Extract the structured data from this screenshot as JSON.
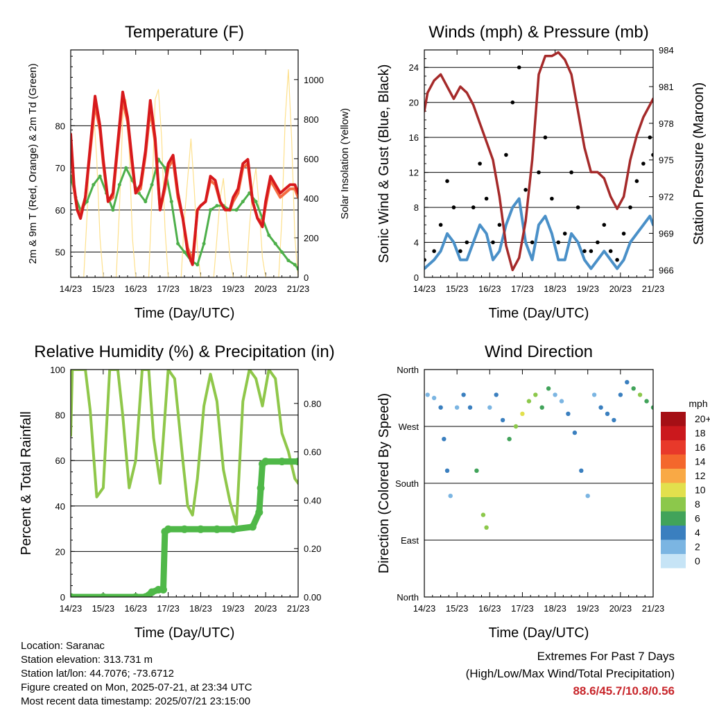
{
  "chart_data": [
    {
      "type": "line",
      "title": "Temperature (F)",
      "xlabel": "Time (Day/UTC)",
      "ylabel": "2m & 9m T (Red, Orange) & 2m Td (Green)",
      "ylabel_right": "Solar Insolation (Yellow)",
      "x_ticks": [
        "14/23",
        "15/23",
        "16/23",
        "17/23",
        "18/23",
        "19/23",
        "20/23",
        "21/23"
      ],
      "ylim": [
        44,
        98
      ],
      "y_ticks": [
        50,
        60,
        70,
        80
      ],
      "ylim_right": [
        0,
        1150
      ],
      "y_ticks_right": [
        0,
        200,
        400,
        600,
        800,
        1000
      ],
      "grid": "horizontal",
      "series": [
        {
          "name": "2m T",
          "color": "#d7191c",
          "x": [
            0,
            0.1,
            0.2,
            0.3,
            0.45,
            0.6,
            0.75,
            0.9,
            1.0,
            1.15,
            1.3,
            1.45,
            1.6,
            1.75,
            1.9,
            2.0,
            2.15,
            2.3,
            2.45,
            2.6,
            2.75,
            2.9,
            3.0,
            3.15,
            3.3,
            3.45,
            3.6,
            3.75,
            3.9,
            4.0,
            4.15,
            4.3,
            4.45,
            4.6,
            4.75,
            4.9,
            5.0,
            5.15,
            5.3,
            5.45,
            5.6,
            5.75,
            5.9,
            6.0,
            6.15,
            6.3,
            6.45,
            6.6,
            6.75,
            6.9,
            7.0
          ],
          "values": [
            78,
            66,
            60,
            58,
            63,
            75,
            87,
            80,
            72,
            62,
            64,
            76,
            88,
            82,
            71,
            64,
            66,
            74,
            86,
            77,
            60,
            66,
            71,
            73,
            64,
            58,
            50,
            47,
            60,
            61,
            62,
            68,
            67,
            62,
            60,
            60,
            63,
            65,
            71,
            72,
            62,
            58,
            56,
            62,
            68,
            66,
            64,
            65,
            66,
            66,
            64
          ]
        },
        {
          "name": "9m T",
          "color": "#f46d43",
          "x": [
            0,
            0.1,
            0.2,
            0.3,
            0.45,
            0.6,
            0.75,
            0.9,
            1.0,
            1.15,
            1.3,
            1.45,
            1.6,
            1.75,
            1.9,
            2.0,
            2.15,
            2.3,
            2.45,
            2.6,
            2.75,
            2.9,
            3.0,
            3.15,
            3.3,
            3.45,
            3.6,
            3.75,
            3.9,
            4.0,
            4.15,
            4.3,
            4.45,
            4.6,
            4.75,
            4.9,
            5.0,
            5.15,
            5.3,
            5.45,
            5.6,
            5.75,
            5.9,
            6.0,
            6.15,
            6.3,
            6.45,
            6.6,
            6.75,
            6.9,
            7.0
          ],
          "values": [
            77,
            65,
            60,
            59,
            63,
            74,
            85,
            79,
            71,
            62,
            63,
            75,
            86,
            81,
            70,
            64,
            65,
            73,
            84,
            76,
            60,
            65,
            70,
            72,
            63,
            58,
            51,
            48,
            60,
            61,
            62,
            67,
            66,
            62,
            60,
            60,
            62,
            64,
            70,
            71,
            62,
            58,
            57,
            61,
            67,
            65,
            63,
            64,
            65,
            65,
            63
          ]
        },
        {
          "name": "2m Td",
          "color": "#4daf4a",
          "x": [
            0,
            0.15,
            0.3,
            0.5,
            0.7,
            0.9,
            1.1,
            1.3,
            1.5,
            1.7,
            1.9,
            2.1,
            2.3,
            2.5,
            2.7,
            2.9,
            3.1,
            3.3,
            3.5,
            3.7,
            3.9,
            4.1,
            4.3,
            4.5,
            4.7,
            4.9,
            5.1,
            5.3,
            5.5,
            5.7,
            5.9,
            6.1,
            6.3,
            6.5,
            6.7,
            6.9,
            7.0
          ],
          "values": [
            68,
            63,
            60,
            62,
            66,
            68,
            64,
            60,
            66,
            70,
            67,
            64,
            62,
            66,
            72,
            70,
            62,
            52,
            50,
            48,
            47,
            52,
            60,
            61,
            61,
            60,
            60,
            62,
            64,
            62,
            58,
            54,
            52,
            50,
            48,
            47,
            46
          ]
        },
        {
          "name": "Solar Insolation",
          "color": "#fee08b",
          "axis": "right",
          "x": [
            0,
            0.2,
            0.4,
            0.5,
            0.6,
            0.7,
            0.8,
            0.9,
            1.0,
            1.2,
            1.4,
            1.5,
            1.6,
            1.7,
            1.8,
            1.9,
            2.0,
            2.2,
            2.4,
            2.5,
            2.6,
            2.7,
            2.8,
            2.9,
            3.0,
            3.2,
            3.4,
            3.5,
            3.6,
            3.7,
            3.8,
            3.9,
            4.0,
            4.2,
            4.4,
            4.5,
            4.6,
            4.7,
            4.8,
            4.9,
            5.0,
            5.2,
            5.4,
            5.5,
            5.6,
            5.7,
            5.8,
            5.9,
            6.0,
            6.2,
            6.4,
            6.5,
            6.6,
            6.7,
            6.8,
            6.9,
            7.0
          ],
          "values": [
            0,
            0,
            0,
            300,
            700,
            850,
            600,
            200,
            0,
            0,
            0,
            350,
            800,
            900,
            650,
            200,
            0,
            0,
            0,
            400,
            900,
            950,
            700,
            250,
            0,
            0,
            0,
            300,
            500,
            700,
            450,
            150,
            0,
            0,
            0,
            200,
            400,
            500,
            300,
            100,
            0,
            0,
            0,
            250,
            450,
            550,
            350,
            100,
            0,
            0,
            0,
            300,
            800,
            1050,
            700,
            200,
            0
          ]
        }
      ]
    },
    {
      "type": "scatter",
      "title": "Winds (mph) & Pressure (mb)",
      "xlabel": "Time (Day/UTC)",
      "ylabel": "Sonic Wind & Gust (Blue, Black)",
      "ylabel_right": "Station Pressure (Maroon)",
      "x_ticks": [
        "14/23",
        "15/23",
        "16/23",
        "17/23",
        "18/23",
        "19/23",
        "20/23",
        "21/23"
      ],
      "ylim": [
        0,
        26
      ],
      "y_ticks": [
        0,
        4,
        8,
        12,
        16,
        20,
        24
      ],
      "ylim_right": [
        965.4,
        984
      ],
      "y_ticks_right": [
        966,
        969,
        972,
        975,
        978,
        981,
        984
      ],
      "grid": "horizontal",
      "series": [
        {
          "name": "Gust",
          "color": "#000000",
          "x": [
            0,
            0.3,
            0.5,
            0.7,
            0.9,
            1.1,
            1.3,
            1.5,
            1.7,
            1.9,
            2.1,
            2.3,
            2.5,
            2.7,
            2.9,
            3.1,
            3.3,
            3.5,
            3.7,
            3.9,
            4.1,
            4.3,
            4.5,
            4.7,
            4.9,
            5.1,
            5.3,
            5.5,
            5.7,
            5.9,
            6.1,
            6.3,
            6.5,
            6.7,
            6.9,
            7.0
          ],
          "values": [
            2,
            3,
            6,
            11,
            8,
            3,
            4,
            8,
            13,
            9,
            4,
            6,
            14,
            20,
            24,
            10,
            4,
            12,
            16,
            9,
            4,
            5,
            12,
            8,
            3,
            3,
            4,
            6,
            3,
            2,
            5,
            8,
            11,
            13,
            16,
            14
          ]
        },
        {
          "name": "Sonic Wind",
          "color": "#4a90c8",
          "x": [
            0,
            0.3,
            0.5,
            0.7,
            0.9,
            1.1,
            1.3,
            1.5,
            1.7,
            1.9,
            2.1,
            2.3,
            2.5,
            2.7,
            2.9,
            3.1,
            3.3,
            3.5,
            3.7,
            3.9,
            4.1,
            4.3,
            4.5,
            4.7,
            4.9,
            5.1,
            5.3,
            5.5,
            5.7,
            5.9,
            6.1,
            6.3,
            6.5,
            6.7,
            6.9,
            7.0
          ],
          "values": [
            1,
            2,
            3,
            5,
            4,
            2,
            2,
            4,
            6,
            5,
            2,
            3,
            6,
            8,
            9,
            4,
            2,
            6,
            7,
            5,
            2,
            2,
            5,
            4,
            2,
            1,
            2,
            3,
            2,
            1,
            2,
            4,
            5,
            6,
            7,
            6
          ]
        },
        {
          "name": "Station Pressure",
          "color": "#a52a2a",
          "axis": "right",
          "x": [
            0,
            0.1,
            0.3,
            0.5,
            0.7,
            0.9,
            1.1,
            1.3,
            1.5,
            1.7,
            1.9,
            2.1,
            2.3,
            2.5,
            2.7,
            2.9,
            3.1,
            3.3,
            3.5,
            3.7,
            3.9,
            4.1,
            4.3,
            4.5,
            4.7,
            4.9,
            5.1,
            5.3,
            5.5,
            5.7,
            5.9,
            6.1,
            6.3,
            6.5,
            6.7,
            6.9,
            7.0
          ],
          "values": [
            979,
            980.5,
            981.5,
            982,
            981,
            980,
            981,
            980.5,
            979.5,
            978,
            976.5,
            975,
            972,
            968,
            966,
            967,
            970,
            975,
            982,
            983.5,
            983.5,
            983.8,
            983.2,
            982,
            979,
            976,
            974,
            974,
            973.5,
            972,
            971,
            972,
            975,
            977,
            978.5,
            979.5,
            980
          ]
        }
      ]
    },
    {
      "type": "line",
      "title": "Relative Humidity (%) & Precipitation (in)",
      "xlabel": "Time (Day/UTC)",
      "ylabel": "Percent & Total Rainfall",
      "x_ticks": [
        "14/23",
        "15/23",
        "16/23",
        "17/23",
        "18/23",
        "19/23",
        "20/23",
        "21/23"
      ],
      "ylim": [
        0,
        100
      ],
      "y_ticks": [
        0,
        20,
        40,
        60,
        80,
        100
      ],
      "ylim_right": [
        0,
        0.94
      ],
      "y_ticks_right": [
        "0.00",
        "0.20",
        "0.40",
        "0.60",
        "0.80"
      ],
      "grid": "horizontal",
      "series": [
        {
          "name": "Relative Humidity",
          "color": "#8fc74a",
          "x": [
            0,
            0.05,
            0.2,
            0.45,
            0.6,
            0.8,
            1.0,
            1.2,
            1.45,
            1.6,
            1.8,
            2.0,
            2.2,
            2.4,
            2.55,
            2.75,
            3.0,
            3.2,
            3.45,
            3.6,
            3.75,
            3.9,
            4.1,
            4.3,
            4.5,
            4.7,
            4.9,
            5.1,
            5.3,
            5.5,
            5.7,
            5.9,
            6.1,
            6.3,
            6.5,
            6.7,
            6.9,
            7.0
          ],
          "values": [
            71,
            100,
            100,
            100,
            82,
            44,
            48,
            100,
            100,
            80,
            48,
            60,
            100,
            100,
            70,
            50,
            100,
            96,
            60,
            40,
            36,
            52,
            84,
            98,
            86,
            56,
            42,
            32,
            86,
            100,
            96,
            84,
            100,
            96,
            72,
            64,
            52,
            50
          ]
        },
        {
          "name": "Total Precipitation",
          "color": "#4fb848",
          "axis": "right",
          "x": [
            0,
            1.0,
            2.0,
            2.3,
            2.5,
            2.7,
            2.85,
            2.9,
            3.0,
            3.5,
            4.0,
            4.5,
            5.0,
            5.6,
            5.8,
            5.85,
            5.9,
            6.0,
            6.5,
            7.0
          ],
          "values": [
            0,
            0,
            0,
            0,
            0.02,
            0.03,
            0.03,
            0.27,
            0.28,
            0.28,
            0.28,
            0.28,
            0.28,
            0.29,
            0.35,
            0.45,
            0.55,
            0.56,
            0.56,
            0.56
          ]
        }
      ]
    },
    {
      "type": "scatter",
      "title": "Wind Direction",
      "xlabel": "Time (Day/UTC)",
      "ylabel": "Direction (Colored By Speed)",
      "x_ticks": [
        "14/23",
        "15/23",
        "16/23",
        "17/23",
        "18/23",
        "19/23",
        "20/23",
        "21/23"
      ],
      "ylim": [
        0,
        360
      ],
      "y_ticks": [
        "North",
        "East",
        "South",
        "West",
        "North"
      ],
      "grid": "horizontal",
      "legend": {
        "title": "mph",
        "placement": "right",
        "levels": [
          "20+",
          "18",
          "16",
          "14",
          "12",
          "10",
          "8",
          "6",
          "4",
          "2",
          "0"
        ],
        "colors": [
          "#a50f15",
          "#cb181d",
          "#e8392a",
          "#f4672c",
          "#f9a945",
          "#e2e04d",
          "#8cc84b",
          "#41a35a",
          "#3a7fbf",
          "#7bb5e2",
          "#c6e4f6"
        ]
      },
      "series": [
        {
          "name": "Direction",
          "x": [
            0.1,
            0.3,
            0.5,
            0.6,
            0.7,
            0.8,
            1.0,
            1.2,
            1.4,
            1.6,
            1.8,
            1.9,
            2.0,
            2.2,
            2.4,
            2.6,
            2.8,
            3.0,
            3.2,
            3.4,
            3.6,
            3.8,
            4.0,
            4.2,
            4.4,
            4.6,
            4.8,
            5.0,
            5.2,
            5.4,
            5.6,
            5.8,
            6.0,
            6.2,
            6.4,
            6.6,
            6.8,
            7.0
          ],
          "values": [
            320,
            315,
            300,
            250,
            200,
            160,
            300,
            320,
            300,
            200,
            130,
            110,
            300,
            320,
            280,
            250,
            270,
            290,
            310,
            320,
            300,
            330,
            320,
            310,
            290,
            260,
            200,
            160,
            320,
            300,
            290,
            280,
            320,
            340,
            330,
            320,
            310,
            300
          ],
          "speeds": [
            2,
            2,
            3,
            4,
            3,
            2,
            2,
            3,
            4,
            5,
            7,
            8,
            2,
            3,
            4,
            6,
            8,
            9,
            8,
            7,
            6,
            5,
            2,
            2,
            3,
            4,
            3,
            2,
            2,
            3,
            4,
            4,
            3,
            4,
            6,
            7,
            6,
            5
          ]
        }
      ]
    }
  ],
  "footer": {
    "location": "Location: Saranac",
    "elevation": "Station elevation: 313.731 m",
    "latlon": "Station lat/lon: 44.7076; -73.6712",
    "created": "Figure created on Mon, 2025-07-21, at 23:34 UTC",
    "recent": "Most recent data timestamp: 2025/07/21 23:15:00"
  },
  "extremes": {
    "title": "Extremes For Past 7 Days",
    "subtitle": "(High/Low/Max Wind/Total Precipitation)",
    "values": "88.6/45.7/10.8/0.56",
    "color": "#c8262b"
  }
}
